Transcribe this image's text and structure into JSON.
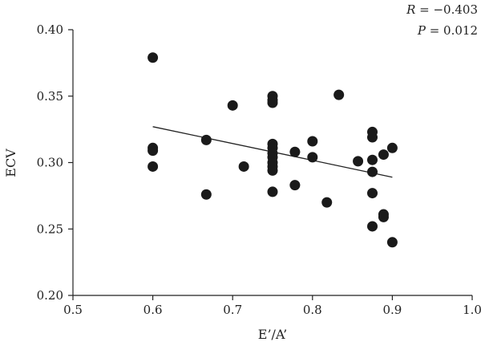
{
  "chart_data": {
    "type": "scatter",
    "xlabel": "E’/A’",
    "ylabel": "ECV",
    "xlim": [
      0.5,
      1.0
    ],
    "ylim": [
      0.2,
      0.4
    ],
    "x_ticks": [
      "0.5",
      "0.6",
      "0.7",
      "0.8",
      "0.9",
      "1.0"
    ],
    "y_ticks": [
      "0.20",
      "0.25",
      "0.30",
      "0.35",
      "0.40"
    ],
    "grid": false,
    "stats": {
      "r_label": "R",
      "r_value": "= −0.403",
      "p_label": "P",
      "p_value": "= 0.012"
    },
    "trendline": {
      "x": [
        0.6,
        0.9
      ],
      "y": [
        0.327,
        0.289
      ]
    },
    "points": [
      {
        "x": 0.6,
        "y": 0.379
      },
      {
        "x": 0.6,
        "y": 0.311
      },
      {
        "x": 0.6,
        "y": 0.309
      },
      {
        "x": 0.6,
        "y": 0.297
      },
      {
        "x": 0.667,
        "y": 0.317
      },
      {
        "x": 0.667,
        "y": 0.276
      },
      {
        "x": 0.7,
        "y": 0.343
      },
      {
        "x": 0.714,
        "y": 0.297
      },
      {
        "x": 0.75,
        "y": 0.35
      },
      {
        "x": 0.75,
        "y": 0.347
      },
      {
        "x": 0.75,
        "y": 0.345
      },
      {
        "x": 0.75,
        "y": 0.314
      },
      {
        "x": 0.75,
        "y": 0.311
      },
      {
        "x": 0.75,
        "y": 0.307
      },
      {
        "x": 0.75,
        "y": 0.304
      },
      {
        "x": 0.75,
        "y": 0.3
      },
      {
        "x": 0.75,
        "y": 0.297
      },
      {
        "x": 0.75,
        "y": 0.294
      },
      {
        "x": 0.75,
        "y": 0.278
      },
      {
        "x": 0.778,
        "y": 0.308
      },
      {
        "x": 0.778,
        "y": 0.283
      },
      {
        "x": 0.8,
        "y": 0.316
      },
      {
        "x": 0.8,
        "y": 0.304
      },
      {
        "x": 0.818,
        "y": 0.27
      },
      {
        "x": 0.833,
        "y": 0.351
      },
      {
        "x": 0.857,
        "y": 0.301
      },
      {
        "x": 0.875,
        "y": 0.323
      },
      {
        "x": 0.875,
        "y": 0.319
      },
      {
        "x": 0.875,
        "y": 0.302
      },
      {
        "x": 0.875,
        "y": 0.293
      },
      {
        "x": 0.875,
        "y": 0.277
      },
      {
        "x": 0.875,
        "y": 0.252
      },
      {
        "x": 0.889,
        "y": 0.306
      },
      {
        "x": 0.889,
        "y": 0.261
      },
      {
        "x": 0.889,
        "y": 0.259
      },
      {
        "x": 0.9,
        "y": 0.311
      },
      {
        "x": 0.9,
        "y": 0.24
      }
    ]
  }
}
